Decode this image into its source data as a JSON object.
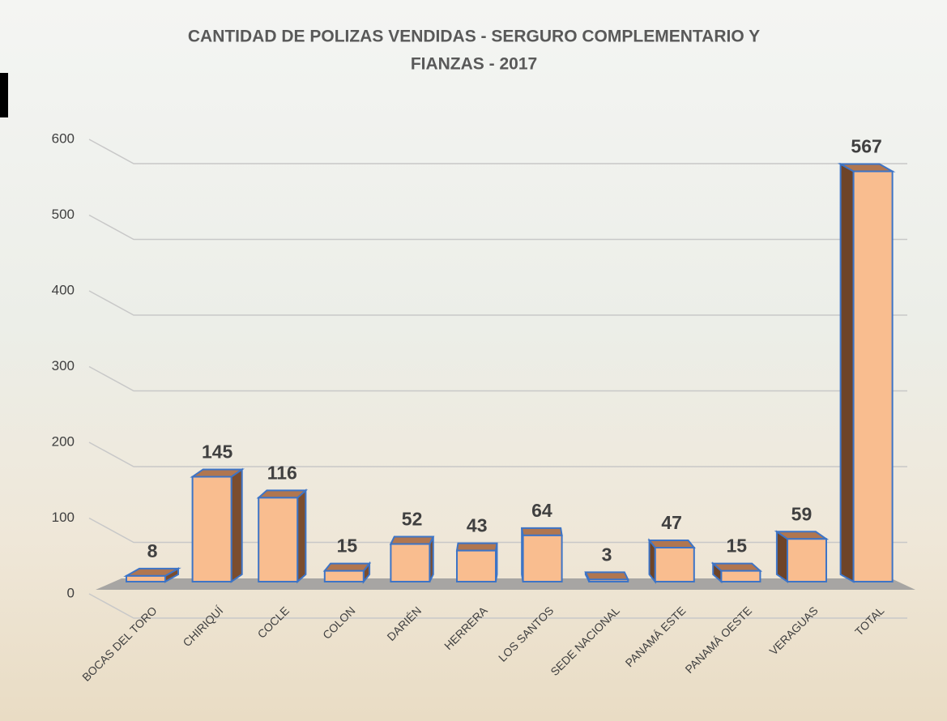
{
  "chart_data": {
    "type": "bar3d",
    "title": [
      "CANTIDAD DE POLIZAS VENDIDAS - SERGURO COMPLEMENTARIO Y",
      "FIANZAS - 2017"
    ],
    "categories": [
      "BOCAS DEL TORO",
      "CHIRIQUÍ",
      "COCLE",
      "COLON",
      "DARIÉN",
      "HERRERA",
      "LOS SANTOS",
      "SEDE NACIONAL",
      "PANAMÁ ESTE",
      "PANAMÁ OESTE",
      "VERAGUAS",
      "TOTAL"
    ],
    "values": [
      8,
      145,
      116,
      15,
      52,
      43,
      64,
      3,
      47,
      15,
      59,
      567
    ],
    "color": "#f9bd8f",
    "ylim": [
      0,
      600
    ],
    "yticks": [
      0,
      100,
      200,
      300,
      400,
      500,
      600
    ],
    "grid": true
  }
}
